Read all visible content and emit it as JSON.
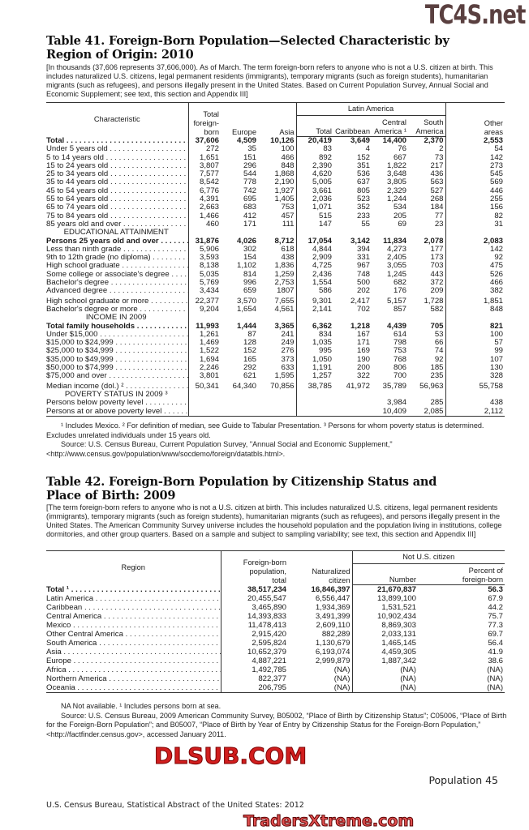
{
  "table41": {
    "title_line1": "Table 41. Foreign-Born Population—Selected Characteristic by",
    "title_line2": "Region of Origin: 2010",
    "intro": "[In thousands (37,606 represents 37,606,000). As of March. The term foreign-born refers to anyone who is not a U.S. citizen at birth. This includes naturalized U.S. citizens, legal permanent residents (immigrants), temporary migrants (such as foreign students), humanitarian migrants (such as refugees), and persons illegally present in the United States. Based on Current Population Survey, Annual Social and Economic Supplement; see text, this section and Appendix III]",
    "headers": {
      "characteristic": "Characteristic",
      "total_foreign_born": "Total foreign-born",
      "europe": "Europe",
      "asia": "Asia",
      "latin_america": "Latin America",
      "lat_total": "Total",
      "caribbean": "Caribbean",
      "central_america": "Central America ¹",
      "south_america": "South America",
      "other_areas": "Other areas"
    },
    "rows": [
      {
        "label": "Total",
        "type": "bold",
        "values": [
          "37,606",
          "4,509",
          "10,126",
          "20,419",
          "3,649",
          "14,400",
          "2,370",
          "2,553"
        ]
      },
      {
        "label": "Under 5 years old",
        "values": [
          "272",
          "35",
          "100",
          "83",
          "4",
          "76",
          "2",
          "54"
        ]
      },
      {
        "label": "5 to 14 years old",
        "values": [
          "1,651",
          "151",
          "466",
          "892",
          "152",
          "667",
          "73",
          "142"
        ]
      },
      {
        "label": "15 to 24 years old",
        "values": [
          "3,807",
          "296",
          "848",
          "2,390",
          "351",
          "1,822",
          "217",
          "273"
        ]
      },
      {
        "label": "25 to 34 years old",
        "values": [
          "7,577",
          "544",
          "1,868",
          "4,620",
          "536",
          "3,648",
          "436",
          "545"
        ]
      },
      {
        "label": "35 to 44 years old",
        "values": [
          "8,542",
          "778",
          "2,190",
          "5,005",
          "637",
          "3,805",
          "563",
          "569"
        ]
      },
      {
        "label": "45 to 54 years old",
        "values": [
          "6,776",
          "742",
          "1,927",
          "3,661",
          "805",
          "2,329",
          "527",
          "446"
        ]
      },
      {
        "label": "55 to 64 years old",
        "values": [
          "4,391",
          "695",
          "1,405",
          "2,036",
          "523",
          "1,244",
          "268",
          "255"
        ]
      },
      {
        "label": "65 to 74 years old",
        "values": [
          "2,663",
          "683",
          "753",
          "1,071",
          "352",
          "534",
          "184",
          "156"
        ]
      },
      {
        "label": "75 to 84 years old",
        "values": [
          "1,466",
          "412",
          "457",
          "515",
          "233",
          "205",
          "77",
          "82"
        ]
      },
      {
        "label": "85 years old and over",
        "values": [
          "460",
          "171",
          "111",
          "147",
          "55",
          "69",
          "23",
          "31"
        ]
      },
      {
        "label": "EDUCATIONAL ATTAINMENT",
        "type": "section"
      },
      {
        "label": "Persons 25 years old and over",
        "type": "bold",
        "values": [
          "31,876",
          "4,026",
          "8,712",
          "17,054",
          "3,142",
          "11,834",
          "2,078",
          "2,083"
        ]
      },
      {
        "label": "Less than ninth grade",
        "values": [
          "5,906",
          "302",
          "618",
          "4,844",
          "394",
          "4,273",
          "177",
          "142"
        ]
      },
      {
        "label": "9th to 12th grade (no diploma)",
        "values": [
          "3,593",
          "154",
          "438",
          "2,909",
          "331",
          "2,405",
          "173",
          "92"
        ]
      },
      {
        "label": "High school graduate",
        "values": [
          "8,138",
          "1,102",
          "1,836",
          "4,725",
          "967",
          "3,055",
          "703",
          "475"
        ]
      },
      {
        "label": "Some college or associate's degree",
        "values": [
          "5,035",
          "814",
          "1,259",
          "2,436",
          "748",
          "1,245",
          "443",
          "526"
        ]
      },
      {
        "label": "Bachelor's degree",
        "values": [
          "5,769",
          "996",
          "2,753",
          "1,554",
          "500",
          "682",
          "372",
          "466"
        ]
      },
      {
        "label": "Advanced degree",
        "values": [
          "3,434",
          "659",
          "1807",
          "586",
          "202",
          "176",
          "209",
          "382"
        ]
      },
      {
        "label": "High school graduate or more",
        "type": "gap",
        "values": [
          "22,377",
          "3,570",
          "7,655",
          "9,301",
          "2,417",
          "5,157",
          "1,728",
          "1,851"
        ]
      },
      {
        "label": "Bachelor's degree or more",
        "values": [
          "9,204",
          "1,654",
          "4,561",
          "2,141",
          "702",
          "857",
          "582",
          "848"
        ]
      },
      {
        "label": "INCOME IN 2009",
        "type": "section"
      },
      {
        "label": "Total family households",
        "type": "bold",
        "values": [
          "11,993",
          "1,444",
          "3,365",
          "6,362",
          "1,218",
          "4,439",
          "705",
          "821"
        ]
      },
      {
        "label": "Under $15,000",
        "values": [
          "1,261",
          "87",
          "241",
          "834",
          "167",
          "614",
          "53",
          "100"
        ]
      },
      {
        "label": "$15,000 to $24,999",
        "values": [
          "1,469",
          "128",
          "249",
          "1,035",
          "171",
          "798",
          "66",
          "57"
        ]
      },
      {
        "label": "$25,000 to $34,999",
        "values": [
          "1,522",
          "152",
          "276",
          "995",
          "169",
          "753",
          "74",
          "99"
        ]
      },
      {
        "label": "$35,000 to $49,999",
        "values": [
          "1,694",
          "165",
          "373",
          "1,050",
          "190",
          "768",
          "92",
          "107"
        ]
      },
      {
        "label": "$50,000 to $74,999",
        "values": [
          "2,246",
          "292",
          "633",
          "1,191",
          "200",
          "806",
          "185",
          "130"
        ]
      },
      {
        "label": "$75,000 and over",
        "values": [
          "3,801",
          "621",
          "1,595",
          "1,257",
          "322",
          "700",
          "235",
          "328"
        ]
      },
      {
        "label": "Median income (dol.) ²",
        "type": "gap",
        "values": [
          "50,341",
          "64,340",
          "70,856",
          "38,785",
          "41,972",
          "35,789",
          "56,963",
          "55,758"
        ]
      },
      {
        "label": "POVERTY STATUS IN 2009 ³",
        "type": "section"
      },
      {
        "label": "Persons below poverty level",
        "values": [
          "",
          "",
          "",
          "",
          "",
          "3,984",
          "285",
          "438"
        ]
      },
      {
        "label": "Persons at or above poverty level",
        "values": [
          "",
          "",
          "",
          "",
          "",
          "10,409",
          "2,085",
          "2,112"
        ]
      }
    ],
    "footnote": "¹ Includes Mexico. ² For definition of median, see Guide to Tabular Presentation. ³ Persons for whom poverty status is determined. Excludes unrelated individuals under 15 years old.",
    "source": "Source: U.S. Census Bureau, Current Population Survey, \"Annual Social and Economic Supplement,\" <http://www.census.gov/population/www/socdemo/foreign/datatbls.html>."
  },
  "table42": {
    "title_line1": "Table 42. Foreign-Born Population by Citizenship Status and",
    "title_line2": "Place of Birth: 2009",
    "intro": "[The term foreign-born refers to anyone who is not a U.S. citizen at birth. This includes naturalized U.S. citizens, legal permanent residents (immigrants), temporary migrants (such as foreign students), humanitarian migrants (such as refugees), and persons illegally present in the United States. The American Community Survey universe includes the household population and the population living in institutions, college dormitories, and other group quarters. Based on a sample and subject to sampling variability; see text, this section and Appendix III]",
    "headers": {
      "region": "Region",
      "foreign_born_total": "Foreign-born population, total",
      "naturalized": "Naturalized citizen",
      "not_citizen": "Not U.S. citizen",
      "number": "Number",
      "percent": "Percent of foreign-born"
    },
    "rows": [
      {
        "label": "Total ¹",
        "type": "bold",
        "indent": 1,
        "values": [
          "38,517,234",
          "16,846,397",
          "21,670,837",
          "56.3"
        ]
      },
      {
        "label": "Latin America",
        "indent": 0,
        "values": [
          "20,455,547",
          "6,556,447",
          "13,899,100",
          "67.9"
        ]
      },
      {
        "label": "Caribbean",
        "indent": 1,
        "values": [
          "3,465,890",
          "1,934,369",
          "1,531,521",
          "44.2"
        ]
      },
      {
        "label": "Central America",
        "indent": 1,
        "values": [
          "14,393,833",
          "3,491,399",
          "10,902,434",
          "75.7"
        ]
      },
      {
        "label": "Mexico",
        "indent": 2,
        "values": [
          "11,478,413",
          "2,609,110",
          "8,869,303",
          "77.3"
        ]
      },
      {
        "label": "Other Central America",
        "indent": 2,
        "values": [
          "2,915,420",
          "882,289",
          "2,033,131",
          "69.7"
        ]
      },
      {
        "label": "South America",
        "indent": 1,
        "values": [
          "2,595,824",
          "1,130,679",
          "1,465,145",
          "56.4"
        ]
      },
      {
        "label": "Asia",
        "indent": 0,
        "values": [
          "10,652,379",
          "6,193,074",
          "4,459,305",
          "41.9"
        ]
      },
      {
        "label": "Europe",
        "indent": 0,
        "values": [
          "4,887,221",
          "2,999,879",
          "1,887,342",
          "38.6"
        ]
      },
      {
        "label": "Africa",
        "indent": 0,
        "values": [
          "1,492,785",
          "(NA)",
          "(NA)",
          "(NA)"
        ]
      },
      {
        "label": "Northern America",
        "indent": 0,
        "values": [
          "822,377",
          "(NA)",
          "(NA)",
          "(NA)"
        ]
      },
      {
        "label": "Oceania",
        "indent": 0,
        "values": [
          "206,795",
          "(NA)",
          "(NA)",
          "(NA)"
        ]
      }
    ],
    "footnote": "NA Not available. ¹ Includes persons born at sea.",
    "source": "Source: U.S. Census Bureau, 2009 American Community Survey, B05002, “Place of Birth by Citizenship Status”; C05006, “Place of Birth for the Foreign-Born Population”; and B05007, “Place of Birth by Year of Entry by Citizenship Status for the Foreign-Born Population,” <http://factfinder.census.gov>, accessed January 2011."
  },
  "footer": {
    "section_page": "Population  45",
    "publication": "U.S. Census Bureau, Statistical Abstract of the United States: 2012"
  },
  "watermarks": {
    "top": "TC4S.net",
    "middle": "DLSUB.COM",
    "bottom": "TradersXtreme.com"
  }
}
